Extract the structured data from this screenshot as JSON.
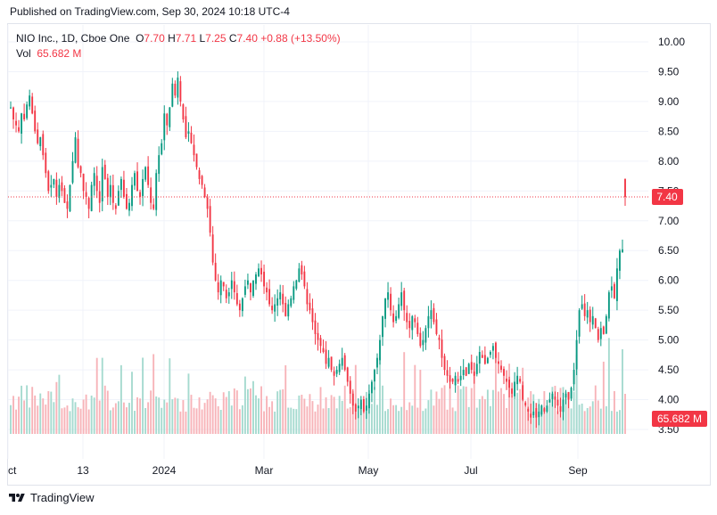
{
  "published_text": "Published on TradingView.com, Sep 30, 2024 10:18 UTC-4",
  "brand_text": "TradingView",
  "legend": {
    "symbol": "NIO Inc., 1D, Cboe One",
    "open_label": "O",
    "open": "7.70",
    "high_label": "H",
    "high": "7.71",
    "low_label": "L",
    "low": "7.25",
    "close_label": "C",
    "close": "7.40",
    "change": "+0.88 (+13.50%)",
    "vol_label": "Vol",
    "vol": "65.682 M"
  },
  "colors": {
    "up": "#089981",
    "down": "#f23645",
    "up_vol": "#a5dacf",
    "down_vol": "#f7b3b8",
    "grid": "#f0f3fa",
    "text": "#131722"
  },
  "chart_data": {
    "type": "candlestick",
    "ylim": [
      3.0,
      10.15
    ],
    "y_ticks": [
      "10.00",
      "9.50",
      "9.00",
      "8.50",
      "8.00",
      "7.50",
      "7.00",
      "6.50",
      "6.00",
      "5.50",
      "5.00",
      "4.50",
      "4.00",
      "3.50"
    ],
    "x_ticks": [
      "Oct",
      "13",
      "2024",
      "Mar",
      "May",
      "Jul",
      "Sep"
    ],
    "last_price_label": "7.40",
    "last_price": 7.4,
    "volume_label": "65.682 M",
    "grid": true,
    "closes": [
      8.9,
      8.7,
      8.6,
      8.5,
      8.8,
      8.7,
      8.95,
      9.1,
      8.8,
      8.5,
      8.3,
      8.4,
      8.1,
      7.8,
      7.5,
      7.6,
      7.7,
      7.4,
      7.6,
      7.5,
      7.3,
      7.2,
      7.6,
      8.0,
      8.4,
      7.9,
      7.8,
      7.5,
      7.4,
      7.2,
      7.6,
      7.8,
      7.5,
      7.3,
      7.9,
      7.7,
      7.4,
      7.6,
      7.3,
      7.2,
      7.5,
      7.7,
      7.4,
      7.2,
      7.3,
      7.6,
      7.8,
      7.5,
      7.4,
      7.7,
      7.9,
      7.6,
      7.3,
      7.2,
      7.8,
      8.1,
      8.3,
      8.8,
      8.6,
      8.9,
      9.3,
      9.1,
      9.4,
      9.0,
      8.7,
      8.4,
      8.5,
      8.3,
      8.1,
      7.9,
      7.7,
      7.6,
      7.4,
      7.2,
      6.8,
      6.3,
      6.0,
      5.8,
      6.0,
      5.9,
      5.7,
      5.8,
      6.0,
      5.8,
      5.6,
      5.5,
      5.7,
      5.9,
      6.0,
      5.8,
      6.0,
      6.1,
      6.2,
      6.1,
      5.9,
      5.8,
      5.6,
      5.5,
      5.6,
      5.7,
      5.8,
      5.6,
      5.4,
      5.6,
      5.7,
      5.9,
      6.0,
      6.2,
      6.1,
      5.9,
      5.6,
      5.5,
      5.3,
      5.1,
      5.0,
      4.9,
      4.8,
      4.6,
      4.7,
      4.5,
      4.4,
      4.5,
      4.6,
      4.7,
      4.5,
      4.3,
      4.1,
      3.9,
      3.8,
      3.9,
      4.0,
      3.8,
      3.9,
      4.1,
      4.3,
      4.5,
      4.7,
      5.0,
      5.4,
      5.7,
      5.8,
      5.5,
      5.3,
      5.4,
      5.6,
      5.8,
      5.5,
      5.3,
      5.2,
      5.4,
      5.3,
      5.1,
      4.9,
      5.0,
      5.2,
      5.4,
      5.5,
      5.3,
      5.1,
      5.0,
      4.7,
      4.5,
      4.4,
      4.3,
      4.3,
      4.4,
      4.3,
      4.4,
      4.5,
      4.4,
      4.6,
      4.5,
      4.4,
      4.6,
      4.8,
      4.7,
      4.6,
      4.7,
      4.8,
      4.9,
      4.7,
      4.6,
      4.5,
      4.4,
      4.3,
      4.2,
      4.1,
      4.3,
      4.4,
      4.3,
      4.0,
      3.9,
      3.8,
      3.7,
      3.8,
      3.7,
      3.8,
      3.9,
      3.8,
      3.9,
      4.0,
      4.1,
      4.0,
      3.9,
      3.8,
      4.0,
      4.1,
      4.0,
      4.2,
      4.5,
      5.0,
      5.5,
      5.6,
      5.4,
      5.5,
      5.3,
      5.4,
      5.2,
      5.0,
      5.2,
      5.1,
      5.4,
      5.8,
      5.9,
      5.7,
      6.2,
      6.5,
      6.52,
      7.4
    ],
    "opens_last": {
      "open": 7.7,
      "high": 7.71,
      "low": 7.25,
      "close": 7.4
    }
  }
}
